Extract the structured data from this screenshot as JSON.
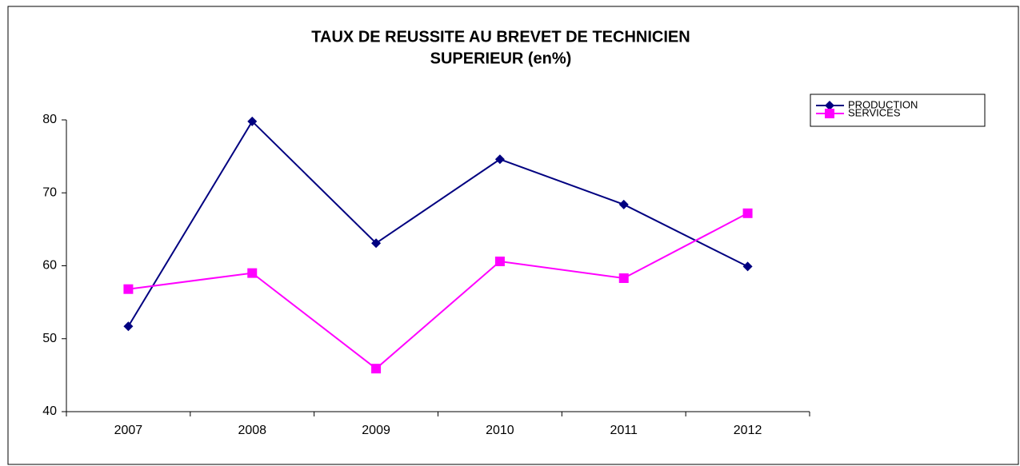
{
  "chart_data": {
    "type": "line",
    "title": [
      "TAUX DE REUSSITE AU BREVET DE TECHNICIEN",
      "SUPERIEUR (en%)"
    ],
    "categories": [
      "2007",
      "2008",
      "2009",
      "2010",
      "2011",
      "2012"
    ],
    "series": [
      {
        "name": "PRODUCTION",
        "color": "#000080",
        "marker": "diamond",
        "values": [
          51.7,
          79.8,
          63.1,
          74.6,
          68.4,
          59.9
        ]
      },
      {
        "name": "SERVICES",
        "color": "#ff00ff",
        "marker": "square",
        "values": [
          56.8,
          59.0,
          45.9,
          60.6,
          58.3,
          67.2
        ]
      }
    ],
    "ylim": [
      40,
      80
    ],
    "yticks": [
      40,
      50,
      60,
      70,
      80
    ],
    "grid": false,
    "legend": "right"
  }
}
